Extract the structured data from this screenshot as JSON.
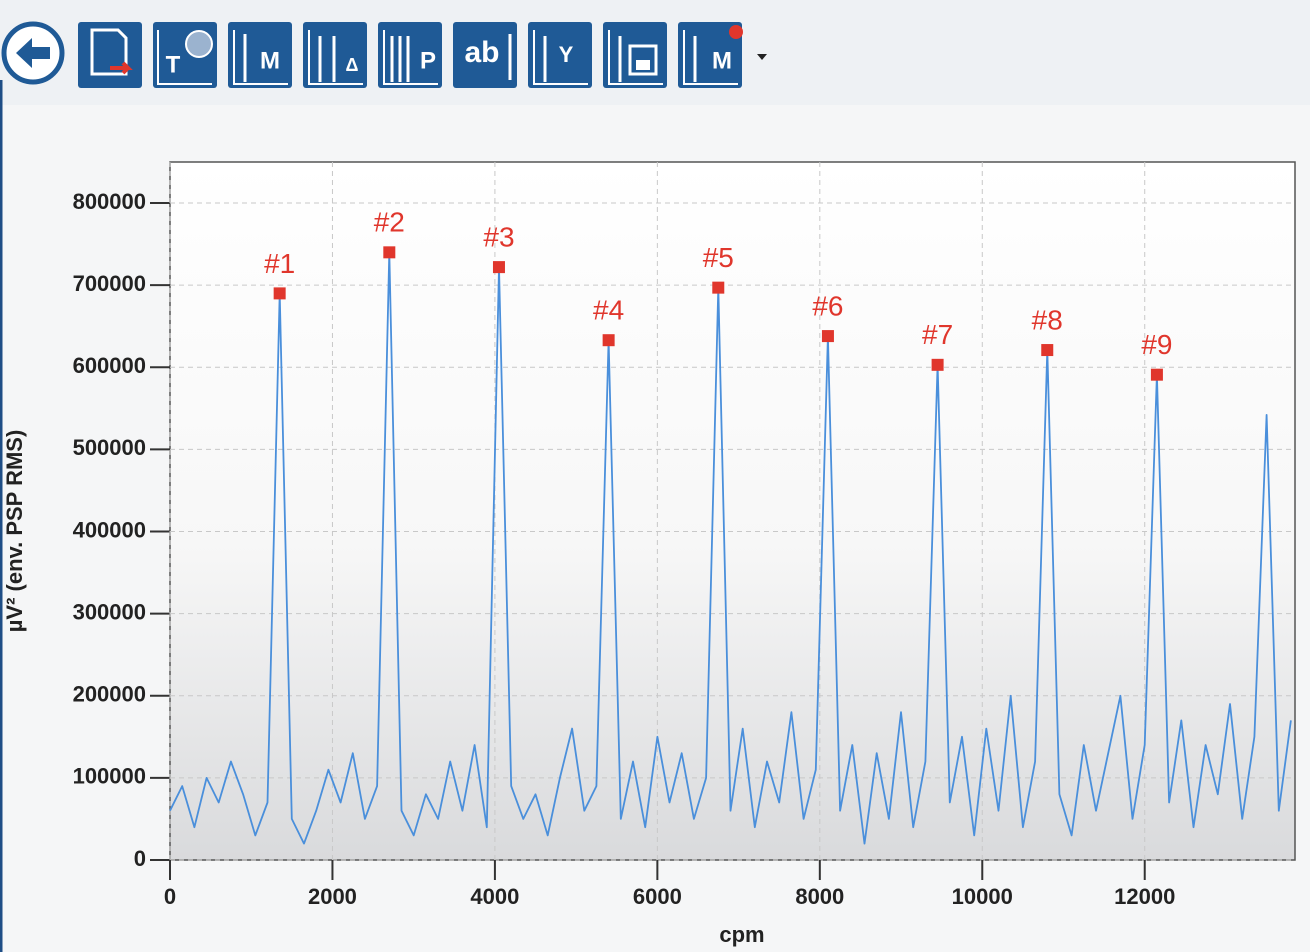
{
  "toolbar": {
    "buttons": [
      "T",
      "M",
      "Δ",
      "P",
      "ab",
      "Y",
      "M"
    ]
  },
  "chart_data": {
    "type": "line",
    "x_label": "cpm",
    "y_label": "µV² (env. PSP RMS)",
    "x": [
      0,
      150,
      300,
      450,
      600,
      750,
      900,
      1050,
      1200,
      1350,
      1500,
      1650,
      1800,
      1950,
      2100,
      2250,
      2400,
      2550,
      2700,
      2850,
      3000,
      3150,
      3300,
      3450,
      3600,
      3750,
      3900,
      4050,
      4200,
      4350,
      4500,
      4650,
      4800,
      4950,
      5100,
      5250,
      5400,
      5550,
      5700,
      5850,
      6000,
      6150,
      6300,
      6450,
      6600,
      6750,
      6900,
      7050,
      7200,
      7350,
      7500,
      7650,
      7800,
      7950,
      8100,
      8250,
      8400,
      8550,
      8700,
      8850,
      9000,
      9150,
      9300,
      9450,
      9600,
      9750,
      9900,
      10050,
      10200,
      10350,
      10500,
      10650,
      10800,
      10950,
      11100,
      11250,
      11400,
      11550,
      11700,
      11850,
      12000,
      12150,
      12300,
      12450,
      12600,
      12750,
      12900,
      13050,
      13200,
      13350,
      13500,
      13650,
      13800
    ],
    "series": [
      {
        "color": "#4a8fdb",
        "values": [
          60000,
          90000,
          40000,
          100000,
          70000,
          120000,
          80000,
          30000,
          70000,
          690000,
          50000,
          20000,
          60000,
          110000,
          70000,
          130000,
          50000,
          90000,
          740000,
          60000,
          30000,
          80000,
          50000,
          120000,
          60000,
          140000,
          40000,
          722000,
          90000,
          50000,
          80000,
          30000,
          100000,
          160000,
          60000,
          90000,
          633000,
          50000,
          120000,
          40000,
          150000,
          70000,
          130000,
          50000,
          100000,
          697000,
          60000,
          160000,
          40000,
          120000,
          70000,
          180000,
          50000,
          110000,
          638000,
          60000,
          140000,
          20000,
          130000,
          50000,
          180000,
          40000,
          120000,
          603000,
          70000,
          150000,
          30000,
          160000,
          60000,
          200000,
          40000,
          120000,
          621000,
          80000,
          30000,
          140000,
          60000,
          130000,
          200000,
          50000,
          140000,
          591000,
          70000,
          170000,
          40000,
          140000,
          80000,
          190000,
          50000,
          150000,
          542000,
          60000,
          170000
        ]
      }
    ],
    "markers": {
      "color": "#e0362c",
      "labels": [
        "#1",
        "#2",
        "#3",
        "#4",
        "#5",
        "#6",
        "#7",
        "#8",
        "#9"
      ],
      "x": [
        1350,
        2700,
        4050,
        5400,
        6750,
        8100,
        9450,
        10800,
        12150
      ],
      "values": [
        690000,
        740000,
        722000,
        633000,
        697000,
        638000,
        603000,
        621000,
        591000
      ]
    },
    "xlim": [
      0,
      13850
    ],
    "ylim": [
      0,
      850000
    ],
    "xticks": [
      0,
      2000,
      4000,
      6000,
      8000,
      10000,
      12000
    ],
    "yticks": [
      0,
      100000,
      200000,
      300000,
      400000,
      500000,
      600000,
      700000,
      800000
    ],
    "grid": true
  }
}
